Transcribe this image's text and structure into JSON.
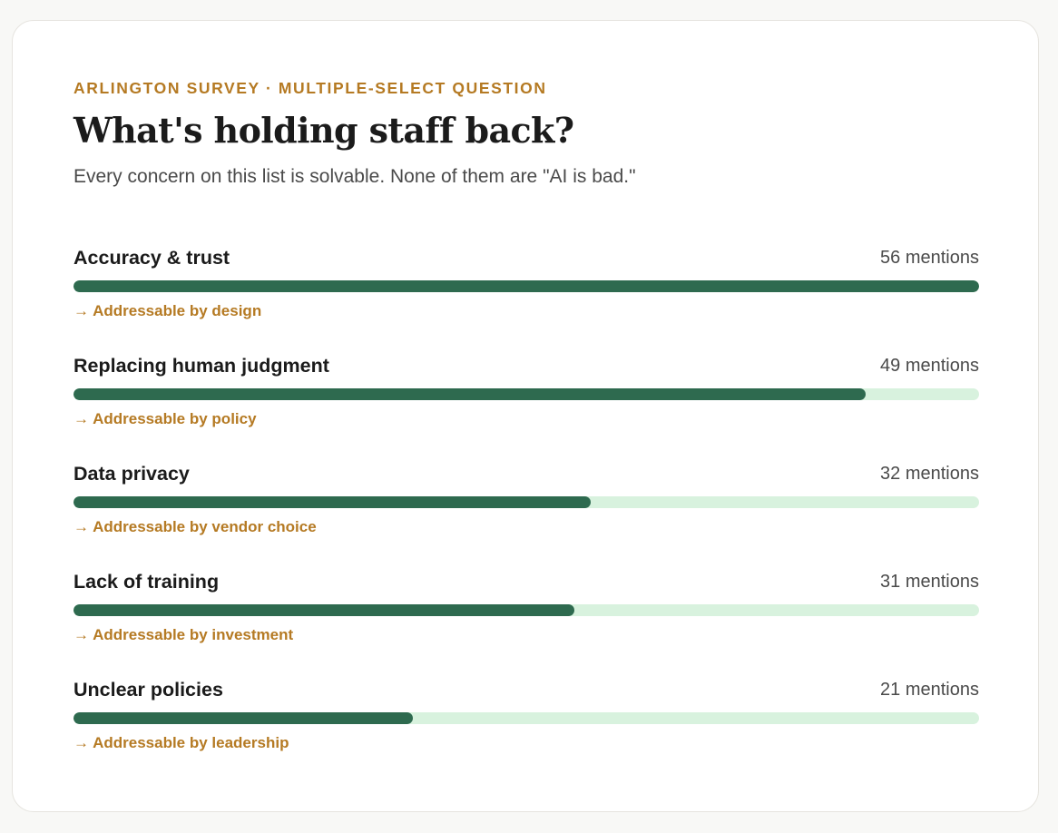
{
  "header": {
    "eyebrow": "ARLINGTON SURVEY · MULTIPLE-SELECT QUESTION",
    "title": "What's holding staff back?",
    "subtitle": "Every concern on this list is solvable. None of them are \"AI is bad.\""
  },
  "colors": {
    "bar_fill": "#2e6a4f",
    "bar_track": "#d8f2de",
    "accent": "#b57a23"
  },
  "chart_data": {
    "type": "bar",
    "orientation": "horizontal",
    "categories": [
      "Accuracy & trust",
      "Replacing human judgment",
      "Data privacy",
      "Lack of training",
      "Unclear policies"
    ],
    "values": [
      56,
      49,
      32,
      31,
      21
    ],
    "value_labels": [
      "56 mentions",
      "49 mentions",
      "32 mentions",
      "31 mentions",
      "21 mentions"
    ],
    "notes": [
      "→ Addressable by design",
      "→ Addressable by policy",
      "→ Addressable by vendor choice",
      "→ Addressable by investment",
      "→ Addressable by leadership"
    ],
    "xlim": [
      0,
      56
    ],
    "grid": false,
    "legend": "none"
  }
}
